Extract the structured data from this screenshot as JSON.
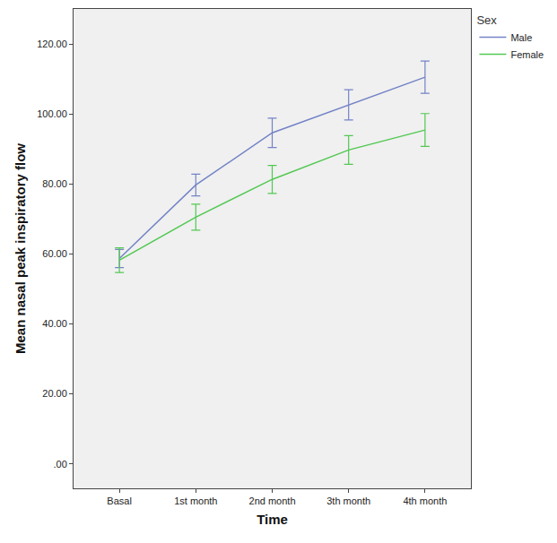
{
  "chart_data": {
    "type": "line",
    "xlabel": "Time",
    "ylabel": "Mean nasal peak inspiratory flow",
    "legend_title": "Sex",
    "legend": "right",
    "grid": false,
    "categories": [
      "Basal",
      "1st month",
      "2nd month",
      "3th month",
      "4th month"
    ],
    "series": [
      {
        "name": "Male",
        "color": "#7383c6",
        "values": [
          58.7,
          79.7,
          94.6,
          102.6,
          110.5
        ],
        "error": [
          2.6,
          3.1,
          4.2,
          4.3,
          4.6
        ]
      },
      {
        "name": "Female",
        "color": "#52c852",
        "values": [
          58.2,
          70.5,
          81.3,
          89.7,
          95.4
        ],
        "error": [
          3.5,
          3.7,
          4.0,
          4.1,
          4.7
        ]
      }
    ],
    "ylim": [
      -7,
      130
    ],
    "yticks": [
      {
        "value": 0,
        "label": ".00"
      },
      {
        "value": 20,
        "label": "20.00"
      },
      {
        "value": 40,
        "label": "40.00"
      },
      {
        "value": 60,
        "label": "60.00"
      },
      {
        "value": 80,
        "label": "80.00"
      },
      {
        "value": 100,
        "label": "100.00"
      },
      {
        "value": 120,
        "label": "120.00"
      }
    ]
  }
}
